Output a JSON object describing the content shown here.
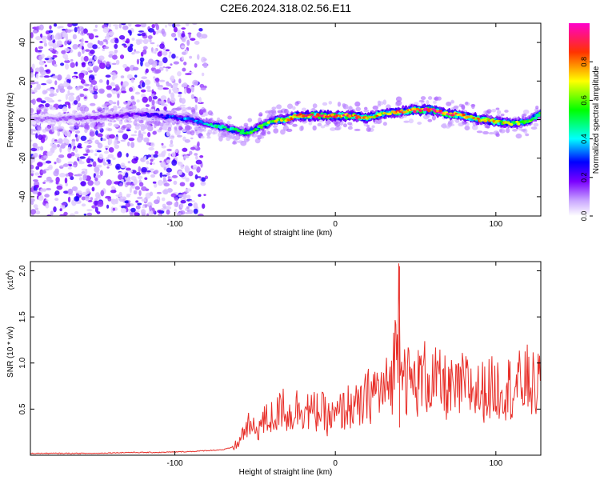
{
  "title": "C2E6.2024.318.02.56.E11",
  "chart_data": [
    {
      "type": "heatmap",
      "xlabel": "Height of straight line (km)",
      "ylabel": "Frequency (Hz)",
      "xlim": [
        -190,
        128
      ],
      "ylim": [
        -50,
        50
      ],
      "xticks": [
        -100,
        0,
        100
      ],
      "yticks": [
        -40,
        -20,
        0,
        20,
        40
      ],
      "colorbar": {
        "label": "Normalized spectral amplitude",
        "range": [
          0,
          1
        ],
        "ticks": [
          0.0,
          0.2,
          0.4,
          0.6,
          0.8
        ],
        "colors": [
          "#ffffff",
          "#9900ff",
          "#0000ff",
          "#00ffff",
          "#00ff00",
          "#ffff00",
          "#ff0000",
          "#ff00cc"
        ]
      },
      "ridge": {
        "x": [
          -190,
          -150,
          -120,
          -100,
          -90,
          -80,
          -70,
          -60,
          -55,
          -50,
          -45,
          -40,
          -35,
          -30,
          -25,
          -20,
          -10,
          0,
          10,
          20,
          30,
          40,
          50,
          60,
          70,
          80,
          90,
          100,
          110,
          120,
          128
        ],
        "y": [
          0,
          1,
          3,
          1,
          0,
          -2,
          -4,
          -6,
          -7,
          -5,
          -3,
          -1,
          0,
          0,
          2,
          2,
          2,
          2,
          2,
          1,
          3,
          4,
          5,
          5,
          3,
          2,
          0,
          -1,
          -2,
          -1,
          3
        ],
        "amplitude": [
          0.1,
          0.15,
          0.2,
          0.3,
          0.35,
          0.4,
          0.45,
          0.45,
          0.5,
          0.5,
          0.55,
          0.6,
          0.65,
          0.7,
          0.75,
          0.85,
          0.9,
          0.85,
          0.8,
          0.75,
          0.7,
          0.75,
          0.85,
          0.9,
          0.85,
          0.8,
          0.75,
          0.7,
          0.6,
          0.55,
          0.5
        ]
      },
      "grid": false
    },
    {
      "type": "line",
      "xlabel": "Height of straight line (km)",
      "ylabel": "SNR (10 * v/v)",
      "y_multiplier_label": "(x10",
      "y_multiplier_exp": "4",
      "y_multiplier_close": ")",
      "xlim": [
        -190,
        128
      ],
      "ylim": [
        0,
        2.1
      ],
      "xticks": [
        -100,
        0,
        100
      ],
      "yticks": [
        0.5,
        1.0,
        1.5,
        2.0
      ],
      "ytick_labels": [
        "0.5",
        "1.0",
        "1.5",
        "2.0"
      ],
      "series": [
        {
          "color": "#e8302a",
          "x": [
            -190,
            -170,
            -150,
            -130,
            -110,
            -90,
            -80,
            -70,
            -65,
            -60,
            -58,
            -55,
            -50,
            -45,
            -40,
            -35,
            -32,
            -30,
            -25,
            -20,
            -15,
            -10,
            -5,
            0,
            5,
            10,
            15,
            20,
            25,
            30,
            35,
            38,
            40,
            42,
            45,
            50,
            55,
            60,
            65,
            70,
            75,
            80,
            85,
            90,
            95,
            100,
            105,
            110,
            115,
            120,
            125,
            128
          ],
          "y": [
            0.02,
            0.02,
            0.02,
            0.03,
            0.03,
            0.04,
            0.05,
            0.06,
            0.08,
            0.15,
            0.25,
            0.35,
            0.3,
            0.4,
            0.45,
            0.5,
            0.7,
            0.45,
            0.55,
            0.6,
            0.5,
            0.55,
            0.45,
            0.45,
            0.55,
            0.6,
            0.55,
            0.7,
            0.8,
            0.75,
            0.9,
            1.3,
            2.05,
            1.1,
            0.9,
            0.85,
            0.95,
            0.9,
            0.85,
            0.8,
            0.75,
            0.85,
            0.8,
            0.75,
            0.8,
            0.8,
            0.85,
            0.8,
            0.85,
            0.9,
            0.8,
            0.85
          ]
        }
      ],
      "grid": false
    }
  ]
}
